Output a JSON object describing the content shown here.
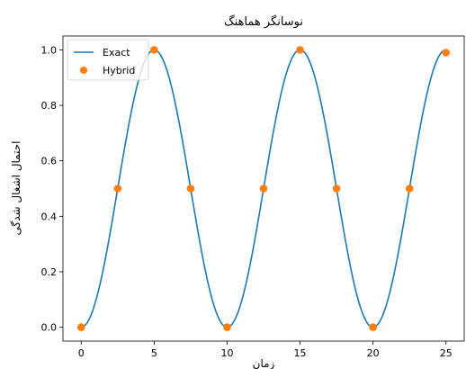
{
  "chart_data": {
    "type": "line",
    "title": "نوسانگر هماهنگ",
    "xlabel": "زمان",
    "ylabel": "احتمال اشغال شدگی",
    "xlim": [
      -1.25,
      26.25
    ],
    "ylim": [
      -0.05,
      1.05
    ],
    "x_ticks": [
      0,
      5,
      10,
      15,
      20,
      25
    ],
    "y_ticks": [
      0.0,
      0.2,
      0.4,
      0.6,
      0.8,
      1.0
    ],
    "x_tick_labels": [
      "0",
      "5",
      "10",
      "15",
      "20",
      "25"
    ],
    "y_tick_labels": [
      "0.0",
      "0.2",
      "0.4",
      "0.6",
      "0.8",
      "1.0"
    ],
    "grid": false,
    "legend_position": "top-left",
    "series": [
      {
        "name": "Exact",
        "kind": "line",
        "color": "#1f77b4",
        "function": "sin^2(pi*t/10)",
        "x_range": [
          0,
          25
        ]
      },
      {
        "name": "Hybrid",
        "kind": "scatter",
        "color": "#ff7f0e",
        "x": [
          0,
          2.5,
          5,
          7.5,
          10,
          12.5,
          15,
          17.5,
          20,
          22.5,
          25
        ],
        "y": [
          0.0,
          0.5,
          1.0,
          0.5,
          0.0,
          0.5,
          1.0,
          0.5,
          0.0,
          0.5,
          0.99
        ]
      }
    ]
  }
}
